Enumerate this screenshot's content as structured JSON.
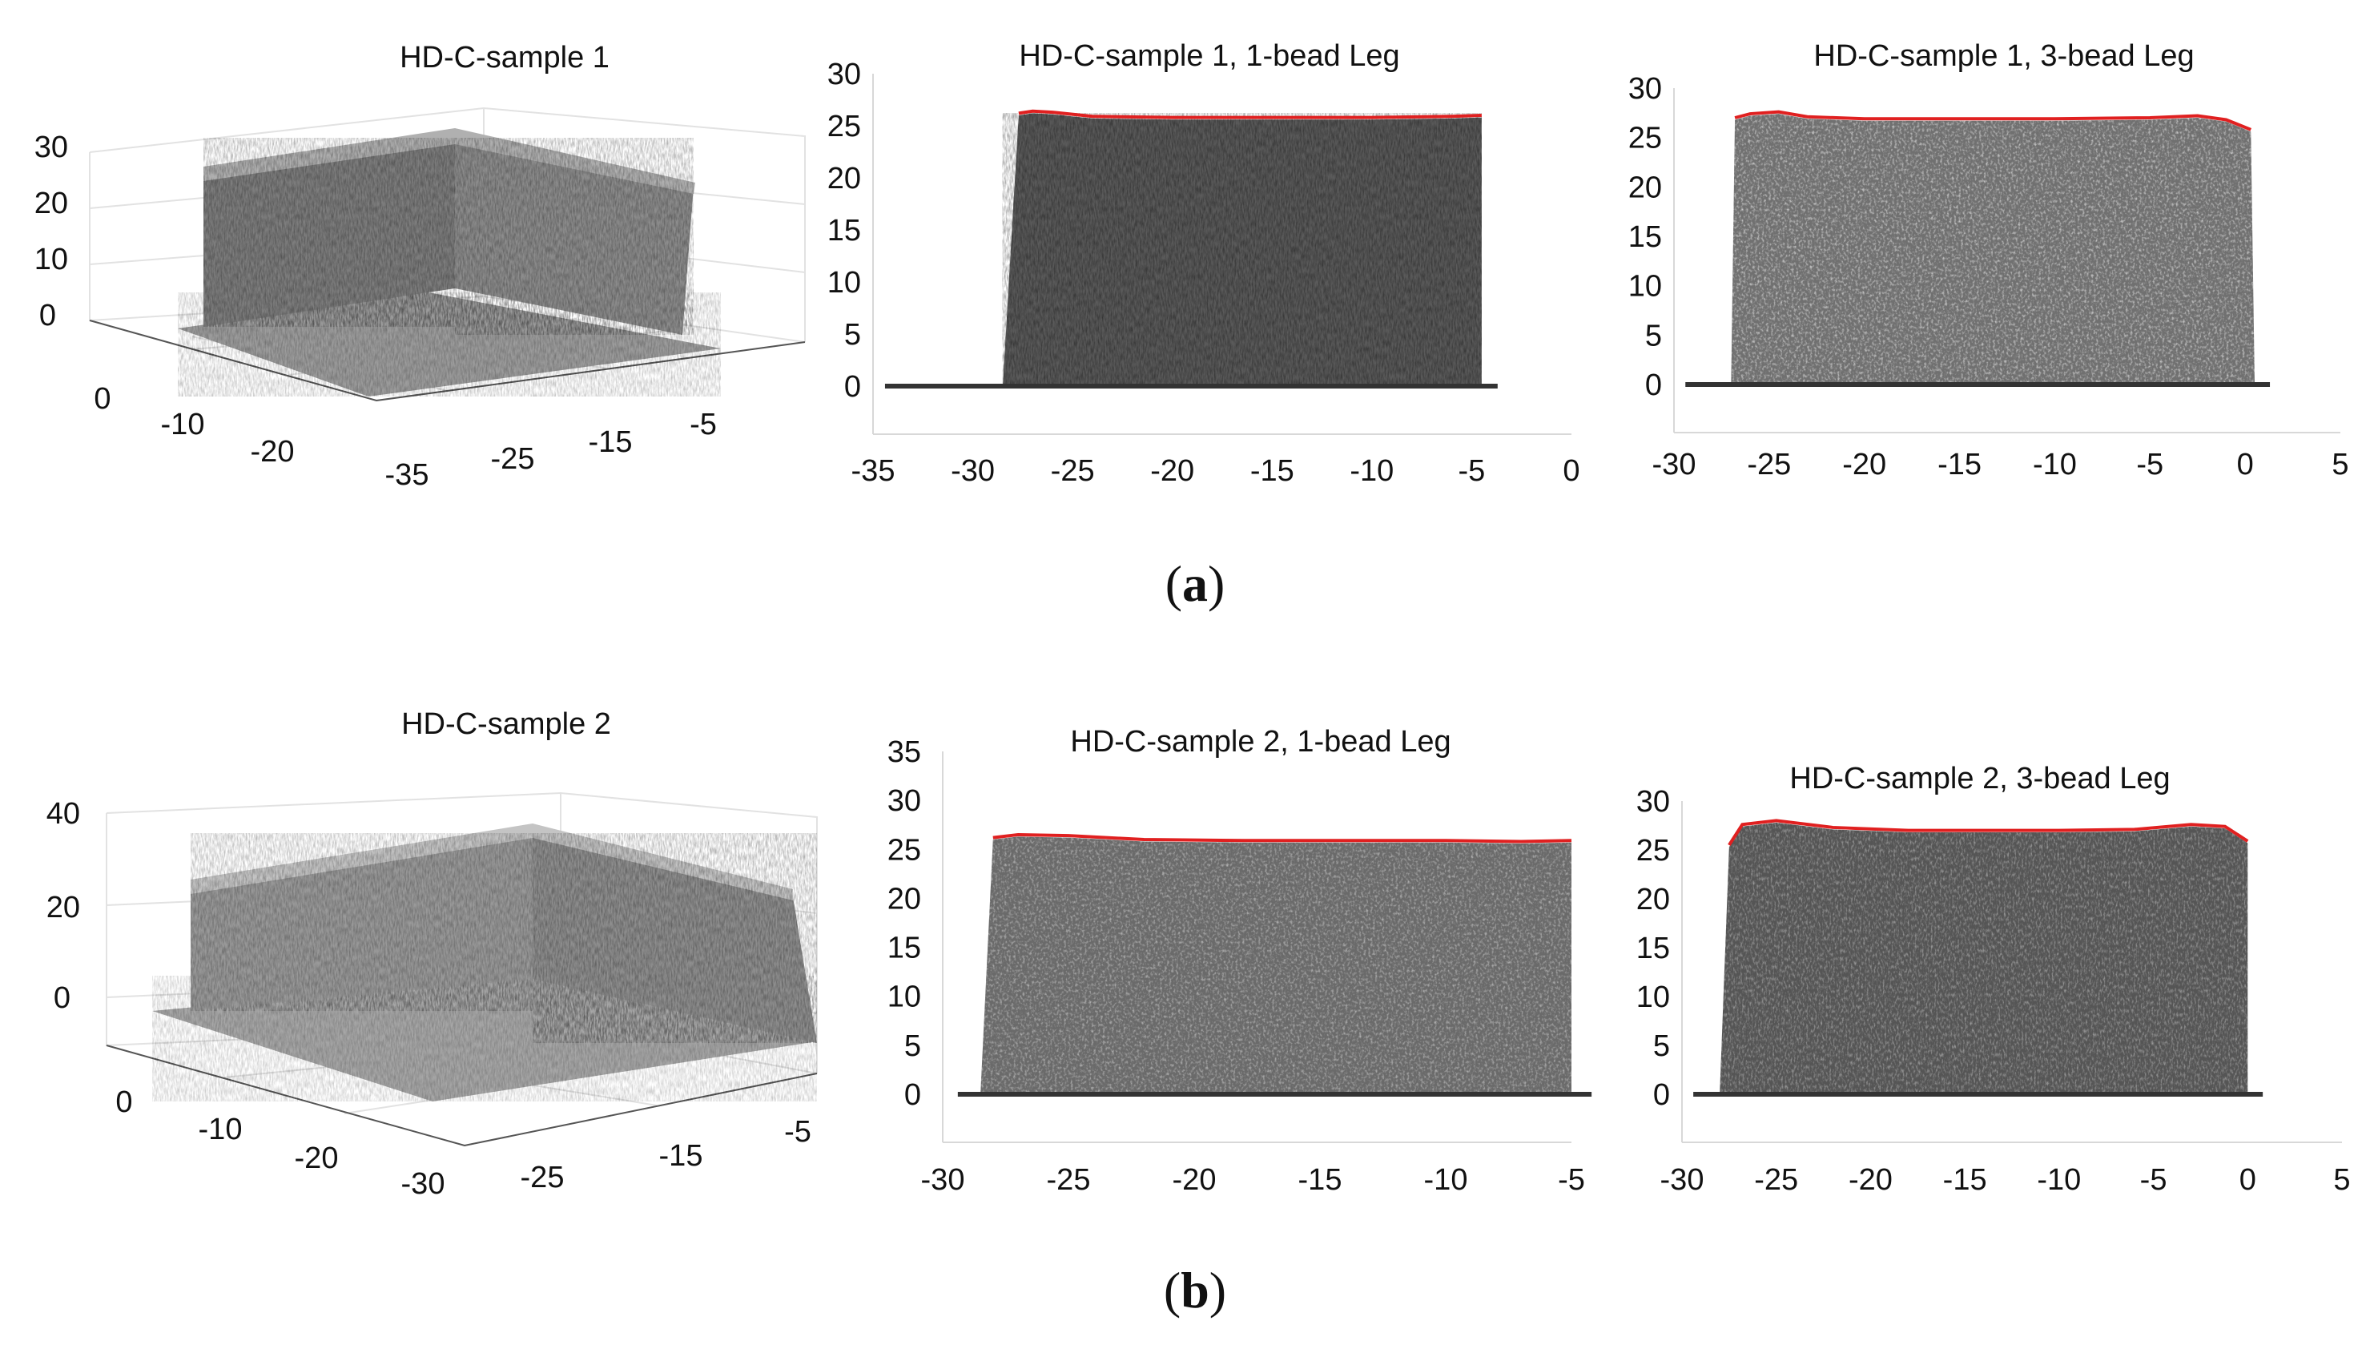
{
  "figure": {
    "label_a_open": "(",
    "label_a_letter": "a",
    "label_a_close": ")",
    "label_b_open": "(",
    "label_b_letter": "b",
    "label_b_close": ")"
  },
  "panels": {
    "a3d": {
      "title": "HD-C-sample 1",
      "z_ticks": [
        "30",
        "20",
        "10",
        "0"
      ],
      "left_ticks": [
        "0",
        "-10",
        "-20",
        "-35"
      ],
      "right_ticks": [
        "-25",
        "-15",
        "-5"
      ]
    },
    "b3d": {
      "title": "HD-C-sample 2",
      "z_ticks": [
        "40",
        "20",
        "0"
      ],
      "left_ticks": [
        "0",
        "-10",
        "-20",
        "-30"
      ],
      "right_ticks": [
        "-25",
        "-15",
        "-5"
      ]
    }
  },
  "chart_data": [
    {
      "type": "scatter",
      "title": "HD-C-sample 1, 1-bead Leg",
      "xlim": [
        -35,
        0
      ],
      "ylim": [
        0,
        30
      ],
      "x_ticks": [
        "-35",
        "-30",
        "-25",
        "-20",
        "-15",
        "-10",
        "-5",
        "0"
      ],
      "y_ticks": [
        "0",
        "5",
        "10",
        "15",
        "20",
        "25",
        "30"
      ],
      "top_profile": {
        "color": "#e02020",
        "x": [
          -27.7,
          -27,
          -26,
          -24,
          -20,
          -15,
          -10,
          -6,
          -4.5
        ],
        "y": [
          26.2,
          26.4,
          26.3,
          25.9,
          25.8,
          25.8,
          25.8,
          25.9,
          26.0
        ]
      },
      "colors": {
        "surface": "#5a5a5a",
        "profile": "#e02020"
      }
    },
    {
      "type": "scatter",
      "title": "HD-C-sample 1, 3-bead Leg",
      "xlim": [
        -30,
        5
      ],
      "ylim": [
        0,
        30
      ],
      "x_ticks": [
        "-30",
        "-25",
        "-20",
        "-15",
        "-10",
        "-5",
        "0",
        "5"
      ],
      "y_ticks": [
        "0",
        "5",
        "10",
        "15",
        "20",
        "25",
        "30"
      ],
      "top_profile": {
        "color": "#e02020",
        "x": [
          -26.8,
          -26,
          -24.5,
          -23,
          -20,
          -15,
          -10,
          -5,
          -2.5,
          -1,
          0.3
        ],
        "y": [
          27.0,
          27.4,
          27.6,
          27.1,
          26.9,
          26.9,
          26.9,
          27.0,
          27.2,
          26.8,
          25.8
        ]
      },
      "colors": {
        "surface": "#707070",
        "profile": "#e02020"
      }
    },
    {
      "type": "scatter",
      "title": "HD-C-sample 2, 1-bead Leg",
      "xlim": [
        -30,
        -5
      ],
      "ylim": [
        0,
        35
      ],
      "x_ticks": [
        "-30",
        "-25",
        "-20",
        "-15",
        "-10",
        "-5"
      ],
      "y_ticks": [
        "0",
        "5",
        "10",
        "15",
        "20",
        "25",
        "30",
        "35"
      ],
      "top_profile": {
        "color": "#e02020",
        "x": [
          -28,
          -27,
          -25,
          -22,
          -18,
          -14,
          -10,
          -7,
          -5
        ],
        "y": [
          26.2,
          26.5,
          26.4,
          26.0,
          25.9,
          25.9,
          25.9,
          25.8,
          25.9
        ]
      },
      "colors": {
        "surface": "#6a6a6a",
        "profile": "#e02020"
      }
    },
    {
      "type": "scatter",
      "title": "HD-C-sample 2, 3-bead Leg",
      "xlim": [
        -30,
        5
      ],
      "ylim": [
        0,
        30
      ],
      "x_ticks": [
        "-30",
        "-25",
        "-20",
        "-15",
        "-10",
        "-5",
        "0",
        "5"
      ],
      "y_ticks": [
        "0",
        "5",
        "10",
        "15",
        "20",
        "25",
        "30"
      ],
      "top_profile": {
        "color": "#e02020",
        "x": [
          -27.5,
          -26.8,
          -25,
          -22,
          -18,
          -14,
          -10,
          -6,
          -3,
          -1.2,
          0
        ],
        "y": [
          25.5,
          27.6,
          28.0,
          27.3,
          27.0,
          27.0,
          27.0,
          27.1,
          27.6,
          27.4,
          25.9
        ]
      },
      "colors": {
        "surface": "#555555",
        "profile": "#e02020"
      }
    }
  ]
}
